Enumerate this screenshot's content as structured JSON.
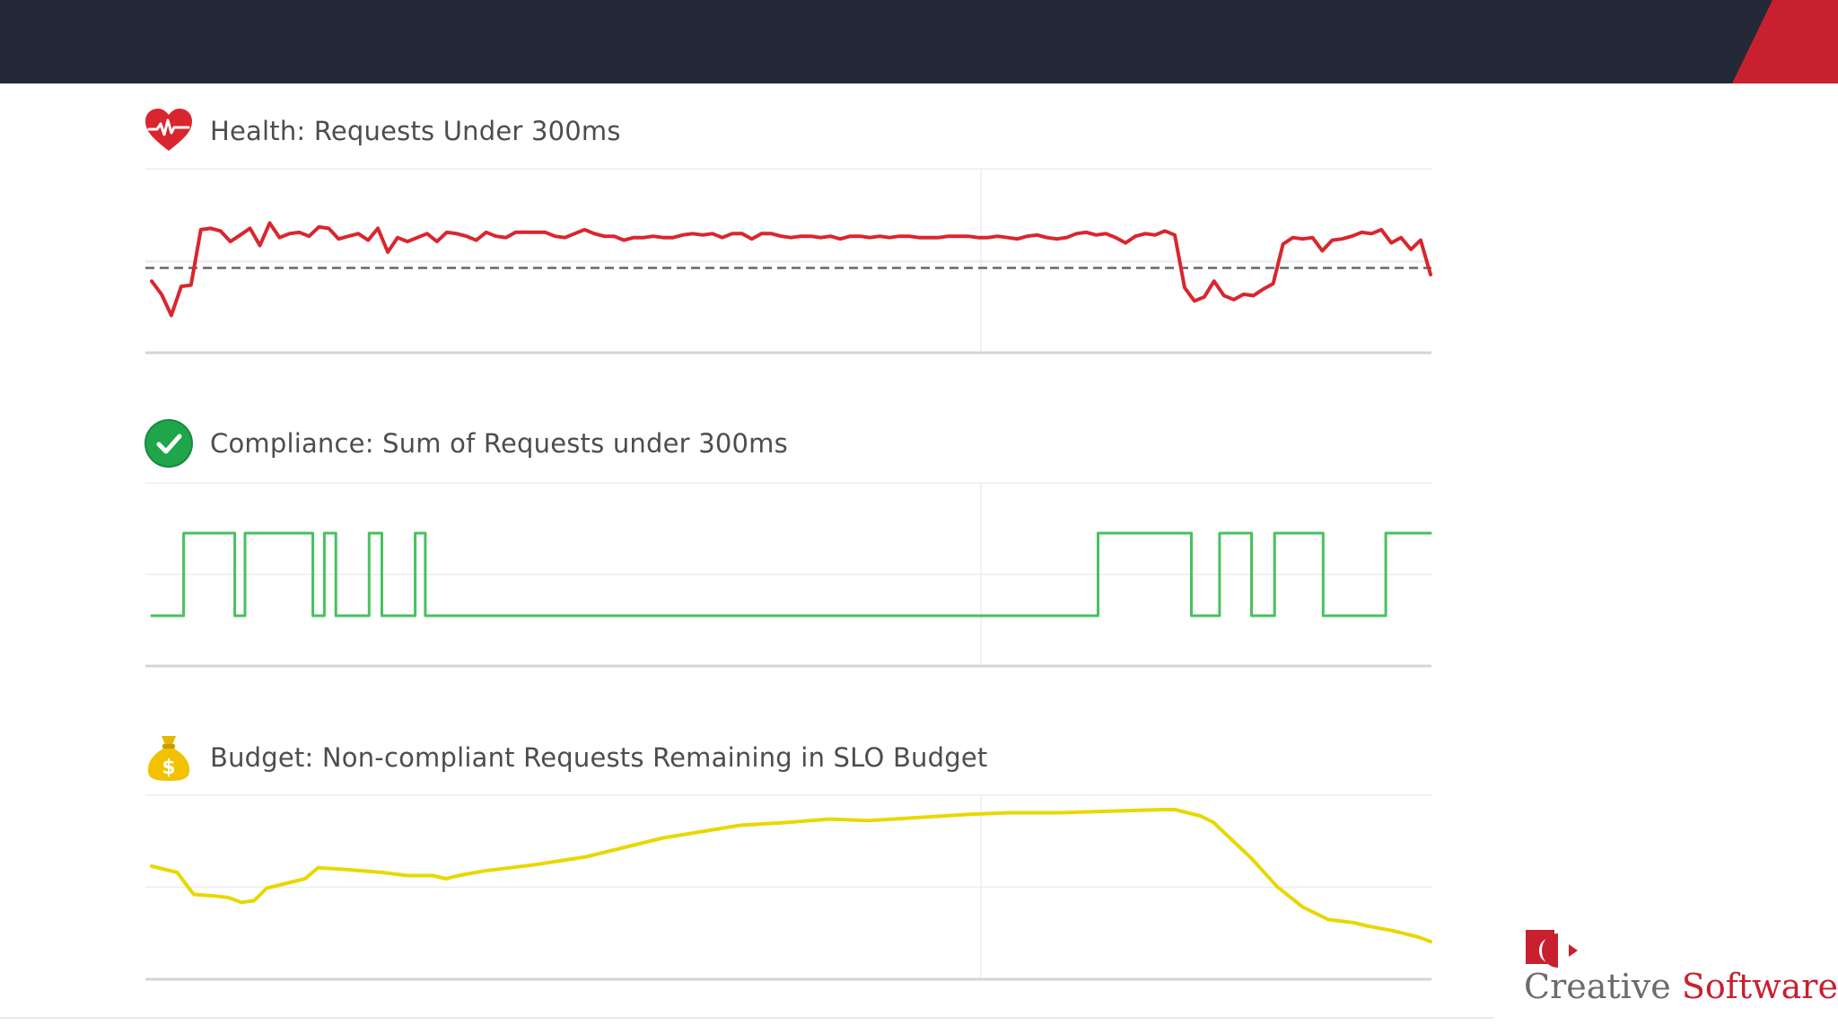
{
  "panels": [
    {
      "title": "Health: Requests Under 300ms",
      "icon": "heartbeat-icon",
      "color": "#d9262e"
    },
    {
      "title": "Compliance: Sum of Requests under 300ms",
      "icon": "checkmark-circle-icon",
      "color": "#45c25e"
    },
    {
      "title": "Budget: Non-compliant Requests Remaining in SLO Budget",
      "icon": "money-bag-icon",
      "color": "#e8d800"
    }
  ],
  "logo": {
    "word1": "Creative",
    "word2": "Software",
    "icon": "creative-software-logo-icon"
  },
  "colors": {
    "topbar": "#232936",
    "accent": "#c8202f",
    "threshold": "#666666",
    "grid": "#eeeeee"
  },
  "chart_data": [
    {
      "type": "line",
      "title": "Health: Requests Under 300ms",
      "grid": true,
      "threshold": 0.5,
      "ylim": [
        0,
        1
      ],
      "series": [
        {
          "values": [
            0.4,
            0.3,
            0.14,
            0.36,
            0.37,
            0.79,
            0.8,
            0.78,
            0.7,
            0.75,
            0.8,
            0.67,
            0.84,
            0.73,
            0.76,
            0.77,
            0.74,
            0.81,
            0.8,
            0.72,
            0.74,
            0.76,
            0.71,
            0.8,
            0.62,
            0.73,
            0.7,
            0.73,
            0.76,
            0.7,
            0.77,
            0.76,
            0.74,
            0.71,
            0.77,
            0.74,
            0.73,
            0.77,
            0.77,
            0.77,
            0.77,
            0.74,
            0.73,
            0.76,
            0.79,
            0.76,
            0.74,
            0.74,
            0.71,
            0.73,
            0.73,
            0.74,
            0.73,
            0.73,
            0.75,
            0.76,
            0.75,
            0.76,
            0.73,
            0.76,
            0.76,
            0.72,
            0.76,
            0.76,
            0.74,
            0.73,
            0.74,
            0.74,
            0.73,
            0.74,
            0.72,
            0.74,
            0.74,
            0.73,
            0.74,
            0.73,
            0.74,
            0.74,
            0.73,
            0.73,
            0.73,
            0.74,
            0.74,
            0.74,
            0.73,
            0.73,
            0.74,
            0.73,
            0.72,
            0.74,
            0.75,
            0.73,
            0.72,
            0.73,
            0.76,
            0.77,
            0.75,
            0.76,
            0.73,
            0.69,
            0.74,
            0.76,
            0.75,
            0.78,
            0.75,
            0.35,
            0.25,
            0.28,
            0.4,
            0.29,
            0.26,
            0.3,
            0.29,
            0.34,
            0.38,
            0.68,
            0.73,
            0.72,
            0.73,
            0.63,
            0.71,
            0.72,
            0.74,
            0.77,
            0.76,
            0.79,
            0.69,
            0.73,
            0.64,
            0.71,
            0.45
          ]
        }
      ]
    },
    {
      "type": "line",
      "title": "Compliance: Sum of Requests under 300ms",
      "grid": true,
      "ylim": [
        0,
        1
      ],
      "series": [
        {
          "x": [
            0,
            2.5,
            2.5,
            6.5,
            6.5,
            7.3,
            7.3,
            12.6,
            12.6,
            13.5,
            13.5,
            14.4,
            14.4,
            17,
            17,
            18,
            18,
            20.6,
            20.6,
            21.4,
            21.4,
            74,
            74,
            81.3,
            81.3,
            83.5,
            83.5,
            86,
            86,
            87.8,
            87.8,
            91.6,
            91.6,
            96.5,
            96.5,
            100
          ],
          "values": [
            0,
            0,
            1,
            1,
            0,
            0,
            1,
            1,
            0,
            0,
            1,
            1,
            0,
            0,
            1,
            1,
            0,
            0,
            1,
            1,
            0,
            0,
            1,
            1,
            0,
            0,
            1,
            1,
            0,
            0,
            1,
            1,
            0,
            0,
            1,
            1
          ]
        }
      ]
    },
    {
      "type": "line",
      "title": "Budget: Non-compliant Requests Remaining in SLO Budget",
      "grid": true,
      "ylim": [
        0,
        1
      ],
      "series": [
        {
          "x": [
            0,
            2,
            3,
            3.3,
            5,
            6,
            7,
            8,
            9,
            10,
            12,
            13,
            15,
            18,
            20,
            22,
            23,
            24,
            26,
            28,
            30,
            34,
            37,
            40,
            43,
            46,
            50,
            53,
            56,
            60,
            64,
            67,
            71,
            75,
            79,
            80,
            82,
            83,
            86,
            88,
            90,
            92,
            94,
            95,
            97,
            99,
            100
          ],
          "values": [
            0.6,
            0.56,
            0.45,
            0.42,
            0.41,
            0.4,
            0.37,
            0.38,
            0.46,
            0.48,
            0.52,
            0.59,
            0.58,
            0.56,
            0.54,
            0.54,
            0.52,
            0.54,
            0.57,
            0.59,
            0.61,
            0.66,
            0.72,
            0.78,
            0.82,
            0.86,
            0.88,
            0.9,
            0.89,
            0.91,
            0.93,
            0.94,
            0.94,
            0.95,
            0.96,
            0.96,
            0.92,
            0.88,
            0.65,
            0.47,
            0.34,
            0.26,
            0.24,
            0.22,
            0.19,
            0.15,
            0.12
          ]
        }
      ]
    }
  ]
}
